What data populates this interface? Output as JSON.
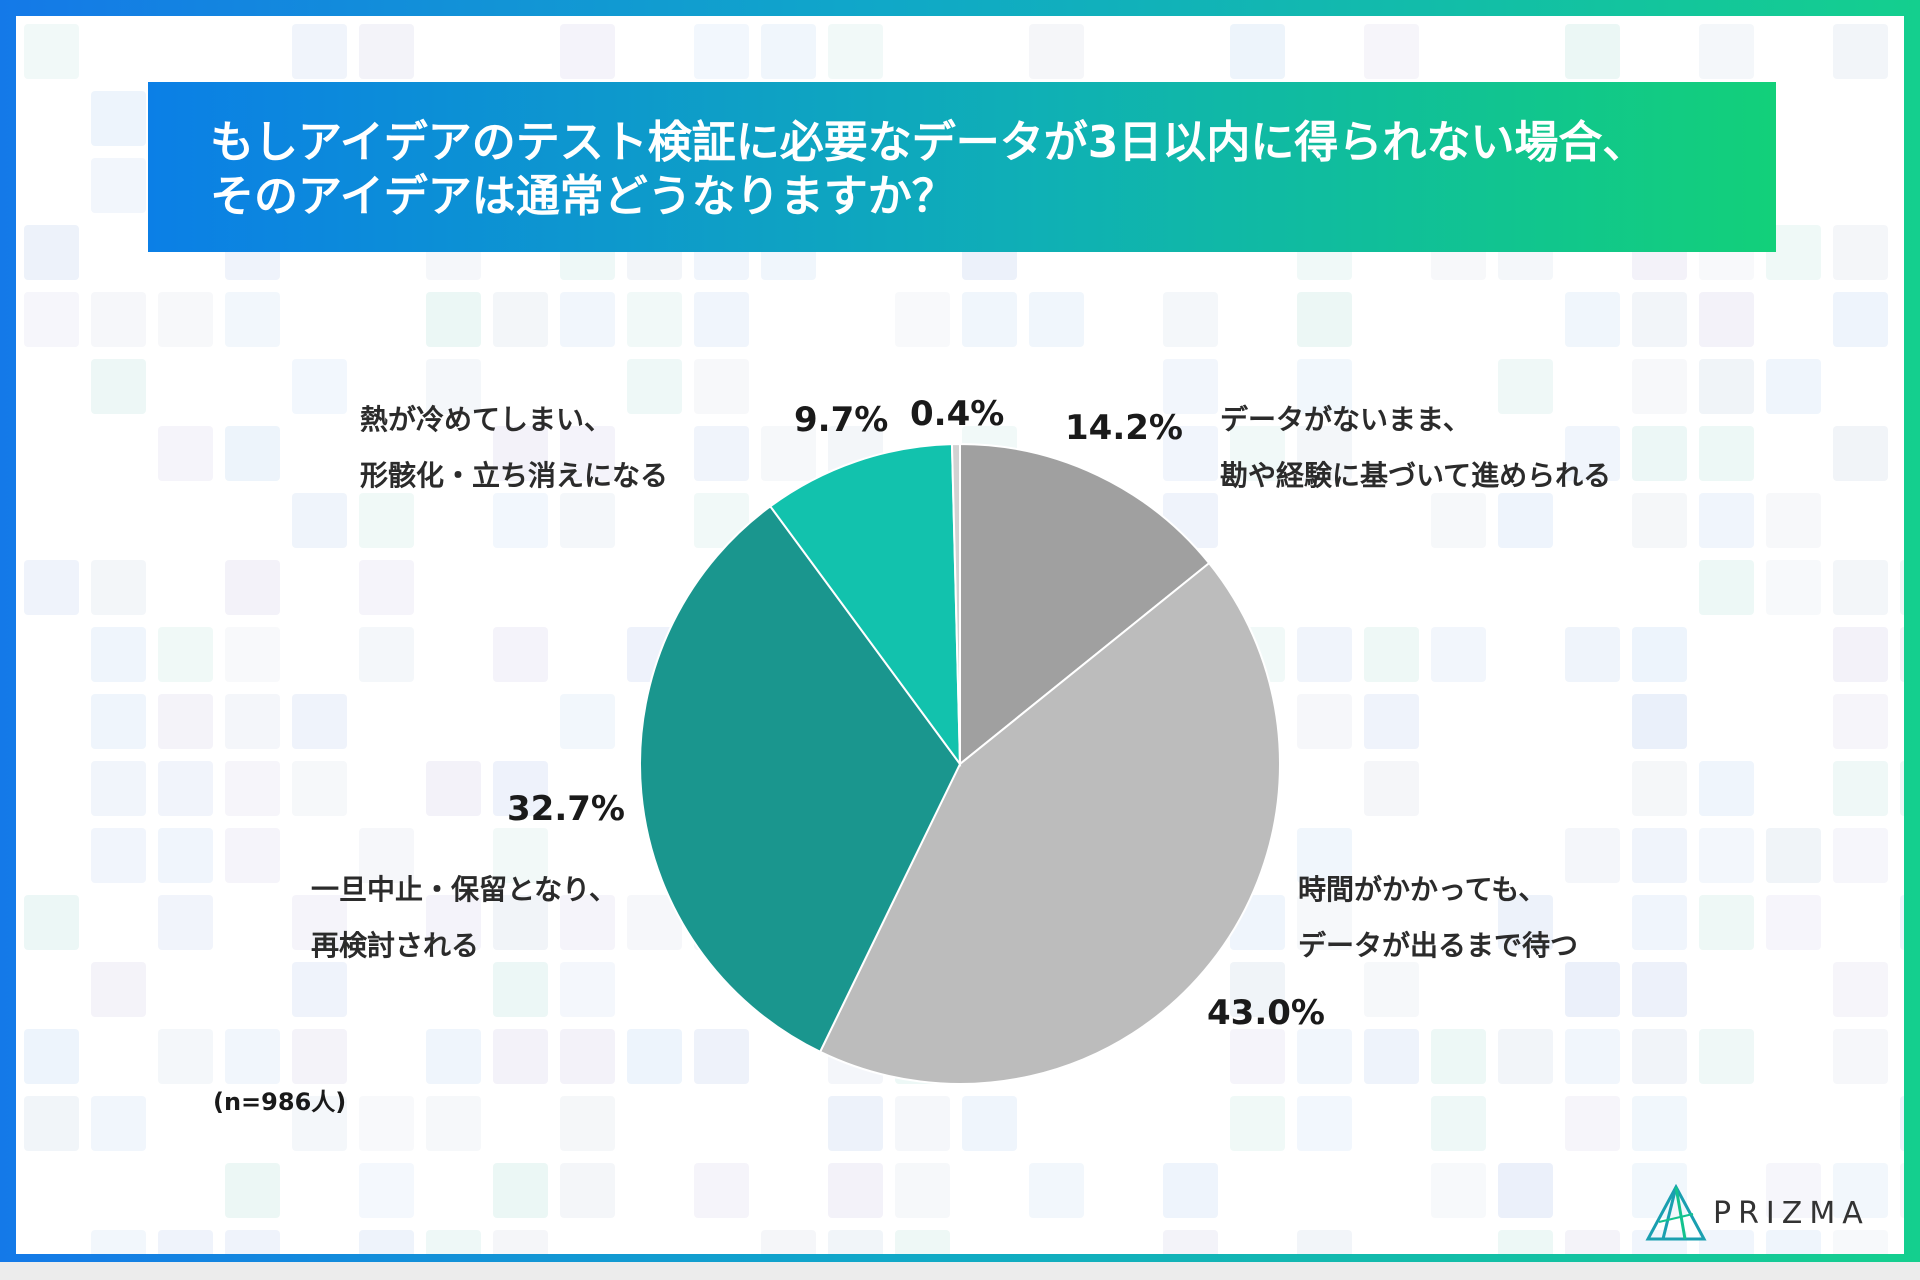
{
  "title_lines": [
    "もしアイデアのテスト検証に必要なデータが3日以内に得られない場合、",
    "そのアイデアは通常どうなりますか？"
  ],
  "sample_note": "(n=986人)",
  "brand": "PRIZMA",
  "chart_data": {
    "type": "pie",
    "start_angle_deg": 0,
    "direction": "clockwise",
    "slices": [
      {
        "label_lines": [
          "データがないまま、",
          "勘や経験に基づいて進められる"
        ],
        "value": 14.2,
        "value_label": "14.2%",
        "color": "#a0a0a0"
      },
      {
        "label_lines": [
          "時間がかかっても、",
          "データが出るまで待つ"
        ],
        "value": 43.0,
        "value_label": "43.0%",
        "color": "#bcbcbc"
      },
      {
        "label_lines": [
          "一旦中止・保留となり、",
          "再検討される"
        ],
        "value": 32.7,
        "value_label": "32.7%",
        "color": "#1a968e"
      },
      {
        "label_lines": [
          "熱が冷めてしまい、",
          "形骸化・立ち消えになる"
        ],
        "value": 9.7,
        "value_label": "9.7%",
        "color": "#12c2ad"
      },
      {
        "label_lines": [],
        "value": 0.4,
        "value_label": "0.4%",
        "color": "#d2d2d2"
      }
    ]
  },
  "colors": {
    "frame_gradient": [
      "#1479e8",
      "#14cf8e"
    ],
    "title_gradient": [
      "#0b7fe6",
      "#12d07a"
    ]
  }
}
